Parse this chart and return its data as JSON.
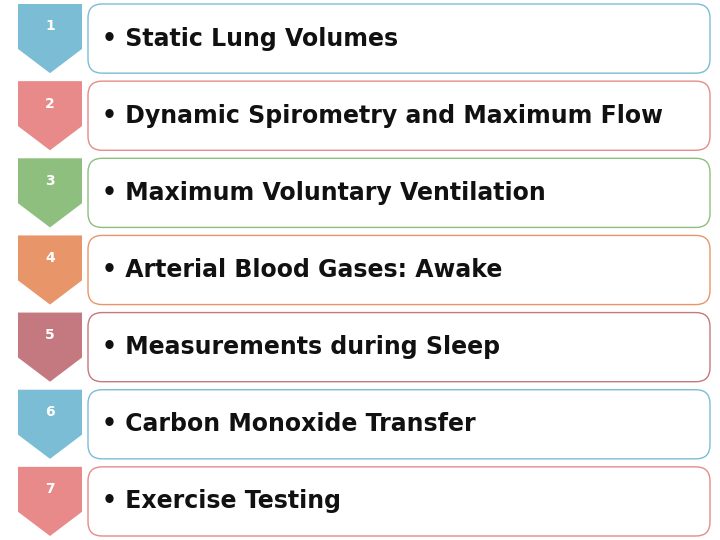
{
  "items": [
    {
      "num": "1",
      "text": "• Static Lung Volumes",
      "color": "#7BBDD4"
    },
    {
      "num": "2",
      "text": "• Dynamic Spirometry and Maximum Flow",
      "color": "#E88A8A"
    },
    {
      "num": "3",
      "text": "• Maximum Voluntary Ventilation",
      "color": "#8EBF7E"
    },
    {
      "num": "4",
      "text": "• Arterial Blood Gases: Awake",
      "color": "#E8956A"
    },
    {
      "num": "5",
      "text": "• Measurements during Sleep",
      "color": "#C47880"
    },
    {
      "num": "6",
      "text": "• Carbon Monoxide Transfer",
      "color": "#7BBDD4"
    },
    {
      "num": "7",
      "text": "• Exercise Testing",
      "color": "#E88A8A"
    }
  ],
  "background_color": "#FFFFFF",
  "box_face_color": "#FFFFFF",
  "text_color": "#111111",
  "num_text_color": "#FFFFFF",
  "font_size": 17,
  "num_font_size": 10,
  "fig_width": 7.2,
  "fig_height": 5.4,
  "dpi": 100
}
